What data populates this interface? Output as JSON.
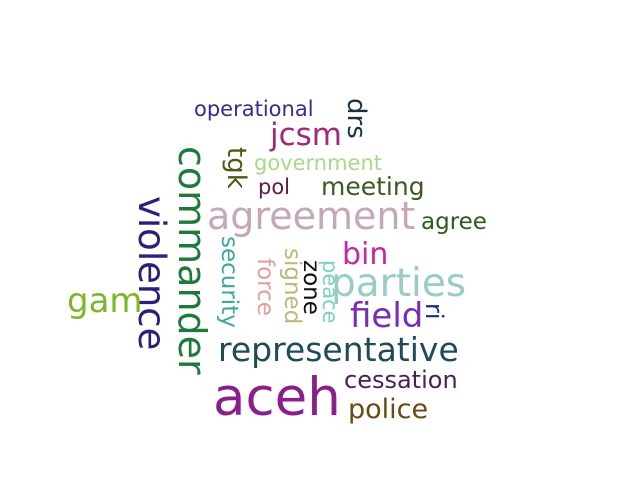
{
  "words": [
    {
      "text": "operational",
      "color": "#3a2a8c",
      "vertical": false
    },
    {
      "text": "jcsm",
      "color": "#a0287a",
      "vertical": false
    },
    {
      "text": "drs",
      "color": "#1d2f45",
      "vertical": true
    },
    {
      "text": "government",
      "color": "#a8d88a",
      "vertical": false
    },
    {
      "text": "tgk",
      "color": "#4e5a12",
      "vertical": true
    },
    {
      "text": "commander",
      "color": "#1e7a3a",
      "vertical": true
    },
    {
      "text": "pol",
      "color": "#5a1a4a",
      "vertical": false
    },
    {
      "text": "meeting",
      "color": "#3a5a1e",
      "vertical": false
    },
    {
      "text": "agreement",
      "color": "#c4a8b8",
      "vertical": false
    },
    {
      "text": "agree",
      "color": "#2a5a1e",
      "vertical": false
    },
    {
      "text": "violence",
      "color": "#2a1f7a",
      "vertical": true
    },
    {
      "text": "bin",
      "color": "#c42aa0",
      "vertical": false
    },
    {
      "text": "security",
      "color": "#3aa8a0",
      "vertical": true
    },
    {
      "text": "force",
      "color": "#e0a09a",
      "vertical": true
    },
    {
      "text": "signed",
      "color": "#c0b878",
      "vertical": true
    },
    {
      "text": "zone",
      "color": "#101010",
      "vertical": true
    },
    {
      "text": "peace",
      "color": "#7ad0c8",
      "vertical": true
    },
    {
      "text": "parties",
      "color": "#98ccc4",
      "vertical": false
    },
    {
      "text": "gam",
      "color": "#7ab82a",
      "vertical": false
    },
    {
      "text": "field",
      "color": "#7a2ab8",
      "vertical": false
    },
    {
      "text": "ri",
      "color": "#1e2a7a",
      "vertical": true
    },
    {
      "text": "representative",
      "color": "#1e4a5a",
      "vertical": false
    },
    {
      "text": "cessation",
      "color": "#4a1e5a",
      "vertical": false
    },
    {
      "text": "aceh",
      "color": "#8a1e8a",
      "vertical": false
    },
    {
      "text": "police",
      "color": "#6a4a12",
      "vertical": false
    }
  ]
}
